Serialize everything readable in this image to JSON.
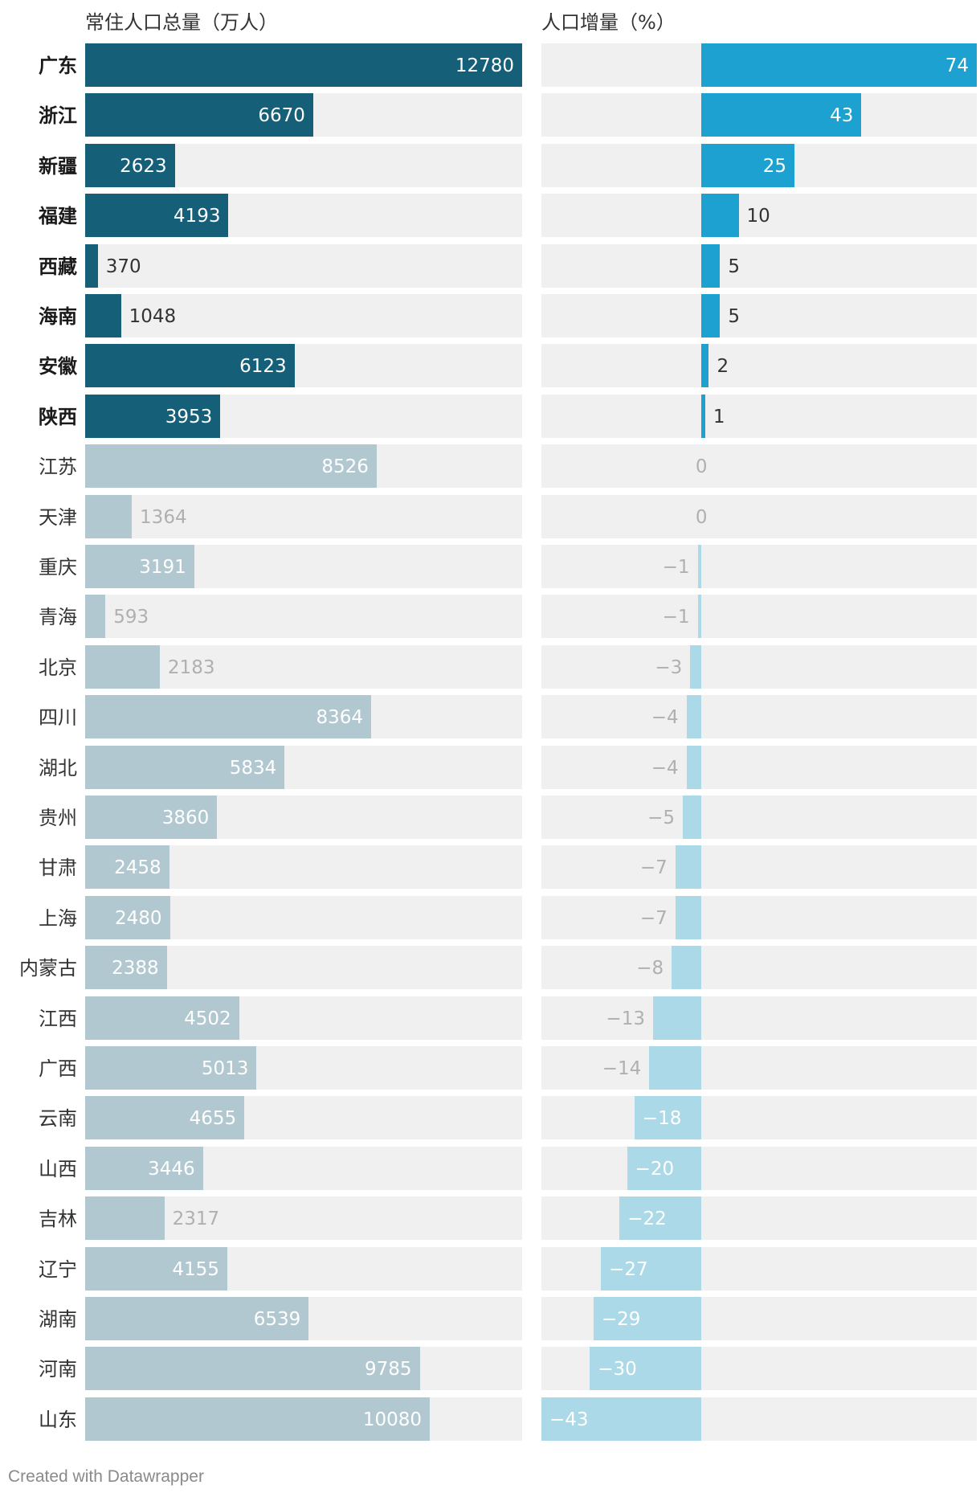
{
  "chart_data": {
    "type": "bar",
    "columns": [
      {
        "key": "population",
        "title": "常住人口总量（万人）"
      },
      {
        "key": "growth",
        "title": "人口增量（%）"
      }
    ],
    "xlim_population": [
      0,
      12780
    ],
    "xlim_growth": [
      -43,
      74
    ],
    "rows": [
      {
        "province": "广东",
        "population": 12780,
        "growth": 74,
        "highlight": true
      },
      {
        "province": "浙江",
        "population": 6670,
        "growth": 43,
        "highlight": true
      },
      {
        "province": "新疆",
        "population": 2623,
        "growth": 25,
        "highlight": true
      },
      {
        "province": "福建",
        "population": 4193,
        "growth": 10,
        "highlight": true
      },
      {
        "province": "西藏",
        "population": 370,
        "growth": 5,
        "highlight": true
      },
      {
        "province": "海南",
        "population": 1048,
        "growth": 5,
        "highlight": true
      },
      {
        "province": "安徽",
        "population": 6123,
        "growth": 2,
        "highlight": true
      },
      {
        "province": "陕西",
        "population": 3953,
        "growth": 1,
        "highlight": true
      },
      {
        "province": "江苏",
        "population": 8526,
        "growth": 0,
        "highlight": false
      },
      {
        "province": "天津",
        "population": 1364,
        "growth": 0,
        "highlight": false
      },
      {
        "province": "重庆",
        "population": 3191,
        "growth": -1,
        "highlight": false
      },
      {
        "province": "青海",
        "population": 593,
        "growth": -1,
        "highlight": false
      },
      {
        "province": "北京",
        "population": 2183,
        "growth": -3,
        "highlight": false
      },
      {
        "province": "四川",
        "population": 8364,
        "growth": -4,
        "highlight": false
      },
      {
        "province": "湖北",
        "population": 5834,
        "growth": -4,
        "highlight": false
      },
      {
        "province": "贵州",
        "population": 3860,
        "growth": -5,
        "highlight": false
      },
      {
        "province": "甘肃",
        "population": 2458,
        "growth": -7,
        "highlight": false
      },
      {
        "province": "上海",
        "population": 2480,
        "growth": -7,
        "highlight": false
      },
      {
        "province": "内蒙古",
        "population": 2388,
        "growth": -8,
        "highlight": false
      },
      {
        "province": "江西",
        "population": 4502,
        "growth": -13,
        "highlight": false
      },
      {
        "province": "广西",
        "population": 5013,
        "growth": -14,
        "highlight": false
      },
      {
        "province": "云南",
        "population": 4655,
        "growth": -18,
        "highlight": false
      },
      {
        "province": "山西",
        "population": 3446,
        "growth": -20,
        "highlight": false
      },
      {
        "province": "吉林",
        "population": 2317,
        "growth": -22,
        "highlight": false
      },
      {
        "province": "辽宁",
        "population": 4155,
        "growth": -27,
        "highlight": false
      },
      {
        "province": "湖南",
        "population": 6539,
        "growth": -29,
        "highlight": false
      },
      {
        "province": "河南",
        "population": 9785,
        "growth": -30,
        "highlight": false
      },
      {
        "province": "山东",
        "population": 10080,
        "growth": -43,
        "highlight": false
      }
    ]
  },
  "colors": {
    "population_highlight": "#155f79",
    "population_default": "#b2c8d0",
    "growth_positive": "#1ca1d0",
    "growth_negative": "#acd9e8",
    "growth_small": "#1ca1d0",
    "track": "#f0f0f0",
    "label_inside": "#ffffff",
    "label_outside_highlight": "#333333",
    "label_outside_default": "#b0b0b0"
  },
  "footer": "Created with Datawrapper"
}
